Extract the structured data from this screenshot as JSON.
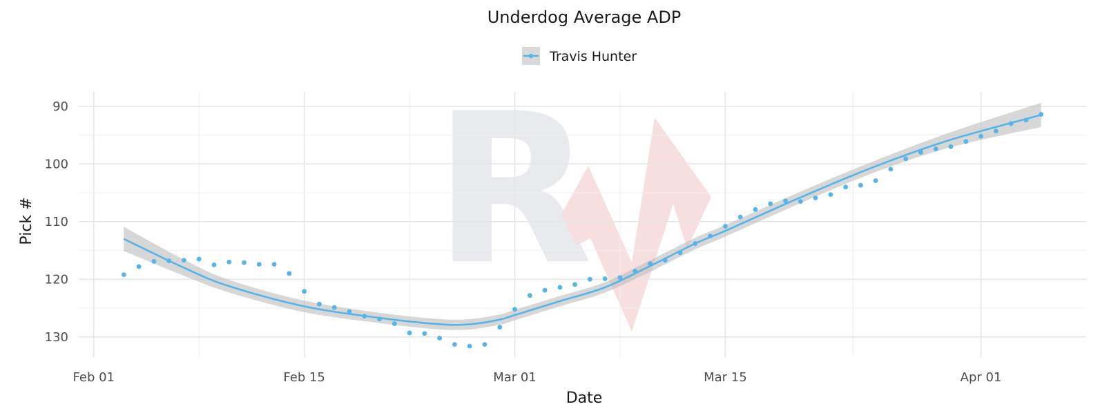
{
  "chart_data": {
    "type": "scatter",
    "title": "Underdog Average ADP",
    "xlabel": "Date",
    "ylabel": "Pick #",
    "x_ticks": [
      "Feb 01",
      "Feb 15",
      "Mar 01",
      "Mar 15",
      "Apr 01"
    ],
    "y_ticks": [
      "90",
      "100",
      "110",
      "120",
      "130"
    ],
    "xlim": [
      "2025-01-31",
      "2025-04-08"
    ],
    "ylim": [
      87.5,
      133.5
    ],
    "y_reversed": true,
    "grid": true,
    "legend_position": "top",
    "series": [
      {
        "name": "Travis Hunter",
        "color": "#56b4e9",
        "x": [
          "2025-02-03",
          "2025-02-04",
          "2025-02-05",
          "2025-02-06",
          "2025-02-07",
          "2025-02-08",
          "2025-02-09",
          "2025-02-10",
          "2025-02-11",
          "2025-02-12",
          "2025-02-13",
          "2025-02-14",
          "2025-02-15",
          "2025-02-16",
          "2025-02-17",
          "2025-02-18",
          "2025-02-19",
          "2025-02-20",
          "2025-02-21",
          "2025-02-22",
          "2025-02-23",
          "2025-02-24",
          "2025-02-25",
          "2025-02-26",
          "2025-02-27",
          "2025-02-28",
          "2025-03-01",
          "2025-03-02",
          "2025-03-03",
          "2025-03-04",
          "2025-03-05",
          "2025-03-06",
          "2025-03-07",
          "2025-03-08",
          "2025-03-09",
          "2025-03-10",
          "2025-03-11",
          "2025-03-12",
          "2025-03-13",
          "2025-03-14",
          "2025-03-15",
          "2025-03-16",
          "2025-03-17",
          "2025-03-18",
          "2025-03-19",
          "2025-03-20",
          "2025-03-21",
          "2025-03-22",
          "2025-03-23",
          "2025-03-24",
          "2025-03-25",
          "2025-03-26",
          "2025-03-27",
          "2025-03-28",
          "2025-03-29",
          "2025-03-30",
          "2025-03-31",
          "2025-04-01",
          "2025-04-02",
          "2025-04-03",
          "2025-04-04",
          "2025-04-05"
        ],
        "y": [
          119.2,
          117.8,
          116.9,
          116.8,
          116.7,
          116.5,
          117.5,
          117.0,
          117.1,
          117.4,
          117.4,
          119.0,
          122.1,
          124.3,
          124.9,
          125.6,
          126.4,
          126.9,
          127.7,
          129.3,
          129.4,
          130.2,
          131.3,
          131.6,
          131.3,
          128.3,
          125.2,
          122.8,
          121.9,
          121.4,
          120.9,
          120.0,
          119.9,
          119.7,
          118.6,
          117.3,
          116.7,
          115.4,
          113.8,
          112.5,
          110.8,
          109.2,
          107.9,
          106.9,
          106.4,
          106.5,
          105.9,
          105.3,
          104.0,
          103.7,
          102.9,
          100.9,
          99.1,
          98.0,
          97.4,
          97.0,
          96.1,
          95.2,
          94.3,
          93.0,
          92.4,
          91.4
        ]
      }
    ],
    "smooth": {
      "color": "#56b4e9",
      "band_color": "#bdbdbd",
      "x": [
        "2025-02-03",
        "2025-02-07",
        "2025-02-10",
        "2025-02-15",
        "2025-02-20",
        "2025-02-24",
        "2025-02-26",
        "2025-02-28",
        "2025-03-01",
        "2025-03-04",
        "2025-03-07",
        "2025-03-10",
        "2025-03-13",
        "2025-03-15",
        "2025-03-20",
        "2025-03-25",
        "2025-03-30",
        "2025-04-05"
      ],
      "y": [
        113.0,
        118.0,
        121.2,
        124.7,
        126.7,
        127.8,
        127.8,
        127.0,
        126.2,
        123.8,
        121.4,
        117.7,
        113.8,
        111.6,
        105.8,
        100.4,
        95.8,
        91.5
      ],
      "band_halfwidth": [
        2.1,
        1.4,
        1.1,
        1.0,
        0.9,
        0.9,
        0.9,
        0.9,
        0.9,
        0.9,
        0.9,
        1.0,
        1.0,
        1.0,
        1.0,
        1.0,
        1.3,
        2.1
      ]
    }
  }
}
